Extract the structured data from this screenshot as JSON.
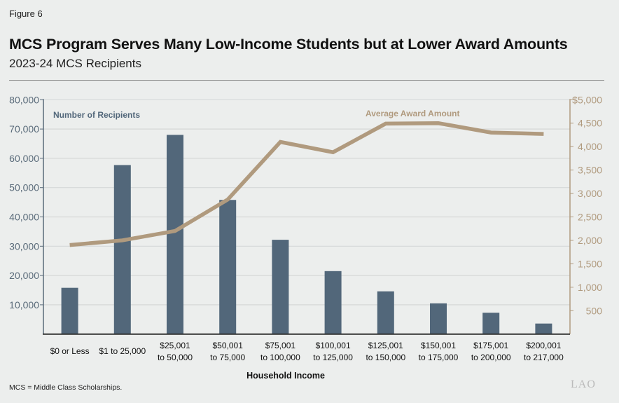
{
  "figure_label": "Figure 6",
  "title": "MCS Program Serves Many Low-Income Students but at Lower Award Amounts",
  "subtitle": "2023-24 MCS Recipients",
  "footnote": "MCS = Middle Class Scholarships.",
  "logo_text": "LAO",
  "colors": {
    "bars": "#52677A",
    "line": "#B09A7E",
    "background": "#ECEEED",
    "left_axis_text": "#5A6B7A"
  },
  "chart_data": {
    "type": "bar+line",
    "title": "MCS Program Serves Many Low-Income Students but at Lower Award Amounts",
    "subtitle": "2023-24 MCS Recipients",
    "xlabel": "Household Income",
    "categories": [
      [
        "$0 or Less"
      ],
      [
        "$1 to 25,000"
      ],
      [
        "$25,001",
        "to 50,000"
      ],
      [
        "$50,001",
        "to 75,000"
      ],
      [
        "$75,001",
        "to 100,000"
      ],
      [
        "$100,001",
        "to 125,000"
      ],
      [
        "$125,001",
        "to 150,000"
      ],
      [
        "$150,001",
        "to 175,000"
      ],
      [
        "$175,001",
        "to 200,000"
      ],
      [
        "$200,001",
        "to 217,000"
      ]
    ],
    "series": [
      {
        "name": "Number of Recipients",
        "type": "bar",
        "axis": "left",
        "values": [
          15800,
          57700,
          68000,
          45800,
          32200,
          21500,
          14600,
          10500,
          7300,
          3600
        ]
      },
      {
        "name": "Average Award Amount",
        "type": "line",
        "axis": "right",
        "values": [
          1900,
          2000,
          2200,
          2870,
          4100,
          3880,
          4490,
          4500,
          4300,
          4270
        ]
      }
    ],
    "left_axis": {
      "range": [
        0,
        80000
      ],
      "ticks": [
        "10,000",
        "20,000",
        "30,000",
        "40,000",
        "50,000",
        "60,000",
        "70,000",
        "80,000"
      ],
      "tick_values": [
        10000,
        20000,
        30000,
        40000,
        50000,
        60000,
        70000,
        80000
      ]
    },
    "right_axis": {
      "range": [
        0,
        5000
      ],
      "ticks": [
        "500",
        "1,000",
        "1,500",
        "2,000",
        "2,500",
        "3,000",
        "3,500",
        "4,000",
        "4,500",
        "$5,000"
      ],
      "tick_values": [
        500,
        1000,
        1500,
        2000,
        2500,
        3000,
        3500,
        4000,
        4500,
        5000
      ]
    },
    "grid": true
  }
}
